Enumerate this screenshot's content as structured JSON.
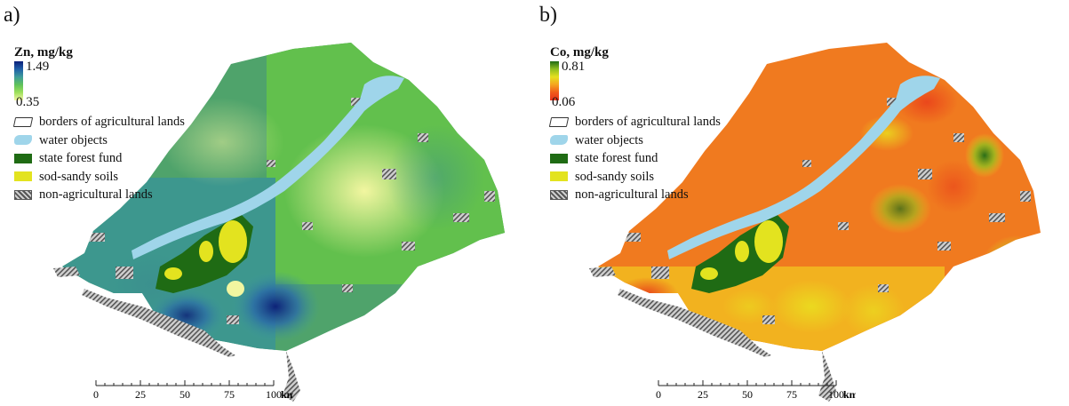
{
  "panels": [
    {
      "label": "a)",
      "legend_title": "Zn, mg/kg",
      "ramp_max": "1.49",
      "ramp_min": "0.35",
      "ramp_colors": [
        "#0b1f7a",
        "#1f5fa8",
        "#3f9c9a",
        "#5fc25a",
        "#9ee05a",
        "#f5f7a8"
      ]
    },
    {
      "label": "b)",
      "legend_title": "Co, mg/kg",
      "ramp_max": "0.81",
      "ramp_min": "0.06",
      "ramp_colors": [
        "#1f6b14",
        "#8fbf1f",
        "#e6e01f",
        "#f5a31f",
        "#f05a1a",
        "#e8321a"
      ]
    }
  ],
  "legend_items": [
    {
      "label": "borders of agricultural lands",
      "icon": "border-outline-icon"
    },
    {
      "label": "water objects",
      "icon": "water-icon",
      "color": "#9fd5ea"
    },
    {
      "label": "state forest fund",
      "icon": "forest-swatch",
      "color": "#1f6b14"
    },
    {
      "label": "sod-sandy soils",
      "icon": "sandy-swatch",
      "color": "#e3e31f"
    },
    {
      "label": "non-agricultural lands",
      "icon": "hatch-swatch",
      "color": "#888888"
    }
  ],
  "scale": {
    "ticks": [
      "0",
      "25",
      "50",
      "75",
      "100"
    ],
    "unit": "km"
  }
}
